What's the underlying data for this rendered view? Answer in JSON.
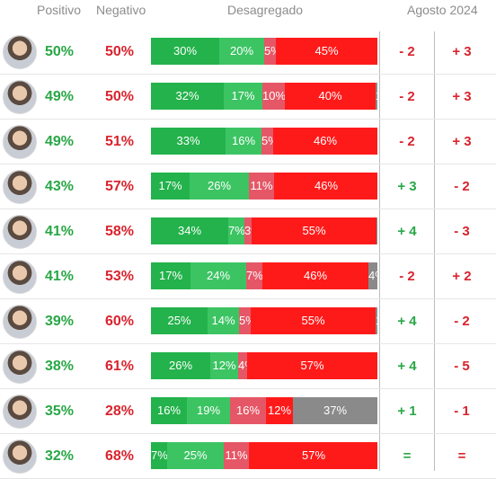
{
  "headers": {
    "positivo": "Positivo",
    "negativo": "Negativo",
    "desagregado": "Desagregado",
    "period": "Agosto 2024"
  },
  "colors": {
    "positive": "#28a745",
    "negative": "#d9232d",
    "segments": [
      "#23b24b",
      "#3cc463",
      "#e55766",
      "#ff1a1a",
      "#8a8a8a"
    ]
  },
  "chart_data": {
    "type": "bar",
    "orientation": "horizontal-stacked",
    "rows": [
      {
        "positivo": "50%",
        "negativo": "50%",
        "segments": [
          30,
          20,
          5,
          45,
          0
        ],
        "labels": [
          "30%",
          "20%",
          "5%",
          "45%",
          "0%"
        ],
        "change_pos": "- 2",
        "change_neg": "+ 3"
      },
      {
        "positivo": "49%",
        "negativo": "50%",
        "segments": [
          32,
          17,
          10,
          40,
          1
        ],
        "labels": [
          "32%",
          "17%",
          "10%",
          "40%",
          "1%"
        ],
        "change_pos": "- 2",
        "change_neg": "+ 3"
      },
      {
        "positivo": "49%",
        "negativo": "51%",
        "segments": [
          33,
          16,
          5,
          46,
          0
        ],
        "labels": [
          "33%",
          "16%",
          "5%",
          "46%",
          "0%"
        ],
        "change_pos": "- 2",
        "change_neg": "+ 3"
      },
      {
        "positivo": "43%",
        "negativo": "57%",
        "segments": [
          17,
          26,
          11,
          46,
          0
        ],
        "labels": [
          "17%",
          "26%",
          "11%",
          "46%",
          "0%"
        ],
        "change_pos": "+ 3",
        "change_neg": "- 2"
      },
      {
        "positivo": "41%",
        "negativo": "58%",
        "segments": [
          34,
          7,
          3,
          55,
          1
        ],
        "labels": [
          "34%",
          "7%",
          "3%",
          "55%",
          "1%"
        ],
        "change_pos": "+ 4",
        "change_neg": "- 3"
      },
      {
        "positivo": "41%",
        "negativo": "53%",
        "segments": [
          17,
          24,
          7,
          46,
          4
        ],
        "labels": [
          "17%",
          "24%",
          "7%",
          "46%",
          "4%"
        ],
        "change_pos": "- 2",
        "change_neg": "+ 2"
      },
      {
        "positivo": "39%",
        "negativo": "60%",
        "segments": [
          25,
          14,
          5,
          55,
          1
        ],
        "labels": [
          "25%",
          "14%",
          "5%",
          "55%",
          "1%"
        ],
        "change_pos": "+ 4",
        "change_neg": "- 2"
      },
      {
        "positivo": "38%",
        "negativo": "61%",
        "segments": [
          26,
          12,
          4,
          57,
          0
        ],
        "labels": [
          "26%",
          "12%",
          "4%",
          "57%",
          "0%"
        ],
        "change_pos": "+ 4",
        "change_neg": "- 5"
      },
      {
        "positivo": "35%",
        "negativo": "28%",
        "segments": [
          16,
          19,
          16,
          12,
          37
        ],
        "labels": [
          "16%",
          "19%",
          "16%",
          "12%",
          "37%"
        ],
        "change_pos": "+ 1",
        "change_neg": "- 1"
      },
      {
        "positivo": "32%",
        "negativo": "68%",
        "segments": [
          7,
          25,
          11,
          57,
          0
        ],
        "labels": [
          "7%",
          "25%",
          "11%",
          "57%",
          "0%"
        ],
        "change_pos": "=",
        "change_neg": "="
      }
    ]
  }
}
